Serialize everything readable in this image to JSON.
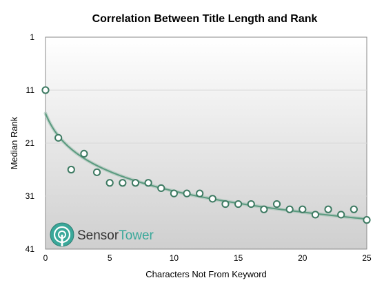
{
  "chart_data": {
    "type": "scatter",
    "title": "Correlation Between Title Length and Rank",
    "xlabel": "Characters Not From Keyword",
    "ylabel": "Median Rank",
    "xlim": [
      0,
      25
    ],
    "ylim": [
      1,
      41
    ],
    "y_inverted": true,
    "x_ticks": [
      0,
      5,
      10,
      15,
      20,
      25
    ],
    "y_ticks": [
      1,
      11,
      21,
      31,
      41
    ],
    "grid": "horizontal",
    "series": [
      {
        "points": [
          {
            "x": 0,
            "y": 11
          },
          {
            "x": 1,
            "y": 20
          },
          {
            "x": 2,
            "y": 26
          },
          {
            "x": 3,
            "y": 23
          },
          {
            "x": 4,
            "y": 26.5
          },
          {
            "x": 5,
            "y": 28.5
          },
          {
            "x": 6,
            "y": 28.5
          },
          {
            "x": 7,
            "y": 28.5
          },
          {
            "x": 8,
            "y": 28.5
          },
          {
            "x": 9,
            "y": 29.5
          },
          {
            "x": 10,
            "y": 30.5
          },
          {
            "x": 11,
            "y": 30.5
          },
          {
            "x": 12,
            "y": 30.5
          },
          {
            "x": 13,
            "y": 31.5
          },
          {
            "x": 14,
            "y": 32.5
          },
          {
            "x": 15,
            "y": 32.5
          },
          {
            "x": 16,
            "y": 32.5
          },
          {
            "x": 17,
            "y": 33.5
          },
          {
            "x": 18,
            "y": 32.5
          },
          {
            "x": 19,
            "y": 33.5
          },
          {
            "x": 20,
            "y": 33.5
          },
          {
            "x": 21,
            "y": 34.5
          },
          {
            "x": 22,
            "y": 33.5
          },
          {
            "x": 23,
            "y": 34.5
          },
          {
            "x": 24,
            "y": 33.5
          },
          {
            "x": 25,
            "y": 35.5
          }
        ]
      }
    ],
    "trendline": {
      "type": "logarithmic",
      "color": "#5a9a7f"
    }
  },
  "colors": {
    "marker_fill": "#ffffff",
    "marker_stroke": "#3d7a62",
    "trendline": "#5a9a7f",
    "plot_bg_top": "#ffffff",
    "plot_bg_bottom": "#cfcfcf",
    "logo_accent": "#3aa89a"
  },
  "logo": {
    "icon": "sensor-tower-logo-icon",
    "word1": "Sensor",
    "word2": "Tower"
  }
}
